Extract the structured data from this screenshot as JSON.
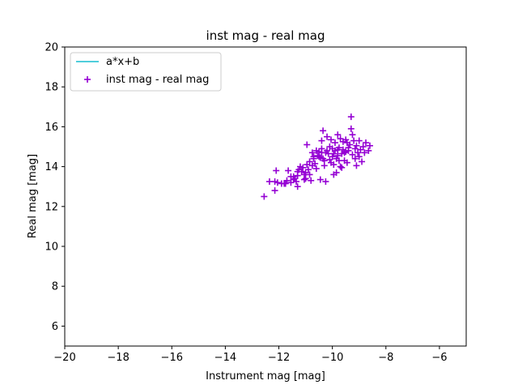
{
  "chart_data": {
    "type": "scatter",
    "title": "inst mag - real mag",
    "xlabel": "Instrument mag [mag]",
    "ylabel": "Real mag [mag]",
    "xlim": [
      -20,
      -5
    ],
    "ylim": [
      5,
      20
    ],
    "xticks": [
      -20,
      -18,
      -16,
      -14,
      -12,
      -10,
      -8,
      -6
    ],
    "yticks": [
      6,
      8,
      10,
      12,
      14,
      16,
      18,
      20
    ],
    "tick_labels_x": [
      "−20",
      "−18",
      "−16",
      "−14",
      "−12",
      "−10",
      "−8",
      "−6"
    ],
    "tick_labels_y": [
      "6",
      "8",
      "10",
      "12",
      "14",
      "16",
      "18",
      "20"
    ],
    "grid": false,
    "legend_position": "top-left",
    "series": [
      {
        "name": "a*x+b",
        "kind": "line",
        "color": "#17becf",
        "x": [],
        "y": []
      },
      {
        "name": "inst mag - real mag",
        "kind": "scatter",
        "marker": "plus",
        "color": "#9400d3",
        "points": [
          [
            -12.55,
            12.5
          ],
          [
            -12.15,
            12.8
          ],
          [
            -12.35,
            13.25
          ],
          [
            -12.15,
            13.25
          ],
          [
            -12.05,
            13.2
          ],
          [
            -12.1,
            13.8
          ],
          [
            -11.9,
            13.15
          ],
          [
            -11.8,
            13.15
          ],
          [
            -11.7,
            13.3
          ],
          [
            -11.75,
            13.15
          ],
          [
            -11.65,
            13.8
          ],
          [
            -11.55,
            13.5
          ],
          [
            -11.55,
            13.2
          ],
          [
            -11.45,
            13.35
          ],
          [
            -11.45,
            13.5
          ],
          [
            -11.4,
            13.4
          ],
          [
            -11.35,
            13.25
          ],
          [
            -11.3,
            13.0
          ],
          [
            -11.3,
            13.55
          ],
          [
            -11.25,
            13.85
          ],
          [
            -11.2,
            14.0
          ],
          [
            -11.15,
            13.75
          ],
          [
            -11.1,
            13.95
          ],
          [
            -11.05,
            13.6
          ],
          [
            -11.0,
            13.7
          ],
          [
            -11.0,
            13.4
          ],
          [
            -10.95,
            14.1
          ],
          [
            -10.9,
            13.85
          ],
          [
            -10.85,
            13.6
          ],
          [
            -10.8,
            13.3
          ],
          [
            -10.75,
            14.05
          ],
          [
            -10.75,
            14.7
          ],
          [
            -10.95,
            15.1
          ],
          [
            -10.7,
            14.4
          ],
          [
            -10.65,
            14.15
          ],
          [
            -10.6,
            13.9
          ],
          [
            -10.55,
            14.55
          ],
          [
            -10.5,
            14.75
          ],
          [
            -10.45,
            14.45
          ],
          [
            -10.45,
            13.35
          ],
          [
            -10.4,
            15.3
          ],
          [
            -10.4,
            14.9
          ],
          [
            -10.35,
            14.4
          ],
          [
            -10.35,
            15.8
          ],
          [
            -10.3,
            14.3
          ],
          [
            -10.3,
            14.05
          ],
          [
            -10.25,
            13.25
          ],
          [
            -10.25,
            14.7
          ],
          [
            -10.2,
            15.5
          ],
          [
            -10.15,
            14.65
          ],
          [
            -10.1,
            14.35
          ],
          [
            -10.1,
            15.0
          ],
          [
            -10.05,
            14.2
          ],
          [
            -10.05,
            15.35
          ],
          [
            -10.0,
            14.9
          ],
          [
            -10.0,
            14.5
          ],
          [
            -9.95,
            14.1
          ],
          [
            -9.95,
            13.6
          ],
          [
            -9.9,
            14.8
          ],
          [
            -9.9,
            15.2
          ],
          [
            -9.85,
            14.4
          ],
          [
            -9.85,
            13.7
          ],
          [
            -9.8,
            14.55
          ],
          [
            -9.8,
            15.6
          ],
          [
            -9.75,
            14.95
          ],
          [
            -9.75,
            14.3
          ],
          [
            -9.7,
            15.4
          ],
          [
            -9.7,
            14.0
          ],
          [
            -9.65,
            14.65
          ],
          [
            -9.65,
            13.95
          ],
          [
            -9.6,
            14.85
          ],
          [
            -9.6,
            15.25
          ],
          [
            -9.55,
            14.3
          ],
          [
            -9.55,
            14.7
          ],
          [
            -9.5,
            15.35
          ],
          [
            -9.5,
            14.75
          ],
          [
            -9.45,
            14.2
          ],
          [
            -9.4,
            14.8
          ],
          [
            -9.4,
            14.95
          ],
          [
            -9.35,
            15.1
          ],
          [
            -9.3,
            16.5
          ],
          [
            -9.3,
            15.9
          ],
          [
            -9.25,
            15.6
          ],
          [
            -9.25,
            14.6
          ],
          [
            -9.2,
            15.3
          ],
          [
            -9.15,
            14.9
          ],
          [
            -9.15,
            14.4
          ],
          [
            -9.1,
            14.05
          ],
          [
            -9.1,
            15.05
          ],
          [
            -9.05,
            14.7
          ],
          [
            -9.0,
            15.3
          ],
          [
            -9.0,
            14.5
          ],
          [
            -8.95,
            14.85
          ],
          [
            -8.9,
            14.25
          ],
          [
            -8.85,
            15.0
          ],
          [
            -8.8,
            14.7
          ],
          [
            -8.75,
            15.2
          ],
          [
            -8.65,
            14.8
          ],
          [
            -8.6,
            15.05
          ],
          [
            -10.85,
            14.25
          ],
          [
            -10.6,
            14.8
          ],
          [
            -10.5,
            14.5
          ],
          [
            -10.4,
            14.7
          ],
          [
            -10.2,
            14.8
          ],
          [
            -9.95,
            14.65
          ],
          [
            -9.8,
            14.85
          ],
          [
            -9.45,
            15.2
          ],
          [
            -11.3,
            13.75
          ],
          [
            -11.05,
            13.35
          ],
          [
            -10.7,
            14.5
          ]
        ]
      }
    ]
  }
}
